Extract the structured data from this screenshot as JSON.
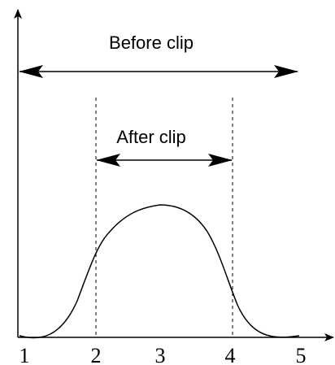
{
  "labels": {
    "before": "Before clip",
    "after": "After clip"
  },
  "axis_labels": [
    "1",
    "2",
    "3",
    "4",
    "5"
  ]
}
